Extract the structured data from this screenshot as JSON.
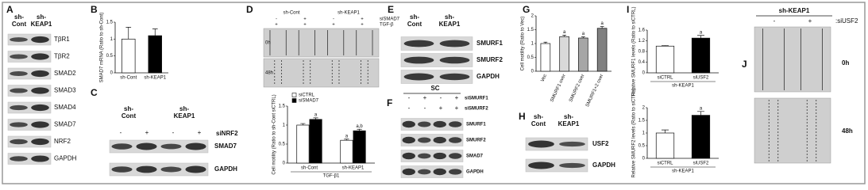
{
  "panels": {
    "A": {
      "letter": "A",
      "columns": [
        [
          "sh-",
          "Cont"
        ],
        [
          "sh-",
          "KEAP1"
        ]
      ],
      "rows": [
        "TβR1",
        "TβR2",
        "SMAD2",
        "SMAD3",
        "SMAD4",
        "SMAD7",
        "NRF2",
        "GAPDH"
      ]
    },
    "B": {
      "letter": "B"
    },
    "C": {
      "letter": "C",
      "columns": [
        [
          "sh-",
          "Cont"
        ],
        [
          "sh-",
          "KEAP1"
        ]
      ],
      "signs": [
        "-",
        "+",
        "-",
        "+"
      ],
      "treatment": "siNRF2",
      "rows": [
        "SMAD7",
        "GAPDH"
      ]
    },
    "D": {
      "letter": "D",
      "columns": [
        "sh-Cont",
        "sh-KEAP1"
      ],
      "treatments": [
        {
          "name": "siSMAD7",
          "signs": [
            "-",
            "+",
            "-",
            "+"
          ]
        },
        {
          "name": "TGF-β",
          "signs": [
            "+",
            "+",
            "+",
            "+"
          ]
        }
      ],
      "times": [
        "0h",
        "48h"
      ]
    },
    "E": {
      "letter": "E",
      "columns": [
        [
          "sh-",
          "Cont"
        ],
        [
          "sh-",
          "KEAP1"
        ]
      ],
      "rows": [
        "SMURF1",
        "SMURF2",
        "GAPDH"
      ]
    },
    "F": {
      "letter": "F",
      "group": "SC",
      "treatments": [
        {
          "name": "siSMURF1",
          "signs": [
            "-",
            "+",
            "-",
            "+"
          ]
        },
        {
          "name": "siSMURF2",
          "signs": [
            "-",
            "-",
            "+",
            "+"
          ]
        }
      ],
      "rows": [
        "SMURF1",
        "SMURF2",
        "SMAD7",
        "GAPDH"
      ]
    },
    "G": {
      "letter": "G"
    },
    "H": {
      "letter": "H",
      "columns": [
        [
          "sh-",
          "Cont"
        ],
        [
          "sh-",
          "KEAP1"
        ]
      ],
      "rows": [
        "USF2",
        "GAPDH"
      ]
    },
    "I": {
      "letter": "I"
    },
    "J": {
      "letter": "J",
      "column": "sh-KEAP1",
      "signs": [
        "-",
        "+"
      ],
      "treatment": ":siUSF2",
      "times": [
        "0h",
        "48h"
      ]
    }
  },
  "chart_data": [
    {
      "type": "bar",
      "y_label": "SMAD7 mRNA (Ratio to sh-Cont)",
      "categories": [
        "sh-Cont",
        "sh-KEAP1"
      ],
      "values": [
        1.0,
        1.1
      ],
      "errors": [
        0.35,
        0.2
      ],
      "colors": [
        "#ffffff",
        "#000000"
      ],
      "ylim": [
        0,
        1.5
      ],
      "yticks": [
        0,
        0.5,
        1,
        1.5
      ]
    },
    {
      "type": "bar",
      "y_label": "Cell motility (Ratio to sh-Cont siCTRL)",
      "x_label": "TGF-β1",
      "categories": [
        "sh-Cont",
        "sh-KEAP1"
      ],
      "series": [
        {
          "name": "siCTRL",
          "color": "#ffffff",
          "values": [
            1.0,
            0.6
          ],
          "errors": [
            0.04,
            0.03
          ],
          "annotations": [
            null,
            "a"
          ]
        },
        {
          "name": "siSMAD7",
          "color": "#000000",
          "values": [
            1.15,
            0.85
          ],
          "errors": [
            0.04,
            0.04
          ],
          "annotations": [
            "a",
            "a,b"
          ]
        }
      ],
      "ylim": [
        0,
        1.5
      ],
      "yticks": [
        0,
        0.5,
        1,
        1.5
      ]
    },
    {
      "type": "bar",
      "y_label": "Cell motility (Ratio to Vec)",
      "categories": [
        "Vec",
        "SMURF1 over",
        "SMURF2 over",
        "SMURF1+2 over"
      ],
      "values": [
        1.0,
        1.25,
        1.2,
        1.55
      ],
      "errors": [
        0.05,
        0.05,
        0.04,
        0.06
      ],
      "colors": [
        "#ffffff",
        "#d9d9d9",
        "#a6a6a6",
        "#808080"
      ],
      "annotations": [
        null,
        "a",
        "a",
        "a"
      ],
      "ylim": [
        0,
        2
      ],
      "yticks": [
        0,
        0.5,
        1,
        1.5,
        2
      ]
    },
    {
      "type": "bar",
      "y_label": "Relative SMURF1 levels (Ratio to siCTRL)",
      "x_label": "sh-KEAP1",
      "categories": [
        "siCTRL",
        "siUSF2"
      ],
      "values": [
        1.0,
        1.3
      ],
      "errors": [
        0.02,
        0.1
      ],
      "colors": [
        "#ffffff",
        "#000000"
      ],
      "annotations": [
        null,
        "a"
      ],
      "ylim": [
        0,
        1.6
      ],
      "yticks": [
        0,
        0.4,
        0.8,
        1.2,
        1.6
      ]
    },
    {
      "type": "bar",
      "y_label": "Relative SMURF2 levels (Ratio to siCTRL)",
      "x_label": "sh-KEAP1",
      "categories": [
        "siCTRL",
        "siUSF2"
      ],
      "values": [
        1.0,
        1.7
      ],
      "errors": [
        0.12,
        0.15
      ],
      "colors": [
        "#ffffff",
        "#000000"
      ],
      "annotations": [
        null,
        "a"
      ],
      "ylim": [
        0,
        2
      ],
      "yticks": [
        0,
        0.5,
        1,
        1.5,
        2
      ]
    }
  ]
}
